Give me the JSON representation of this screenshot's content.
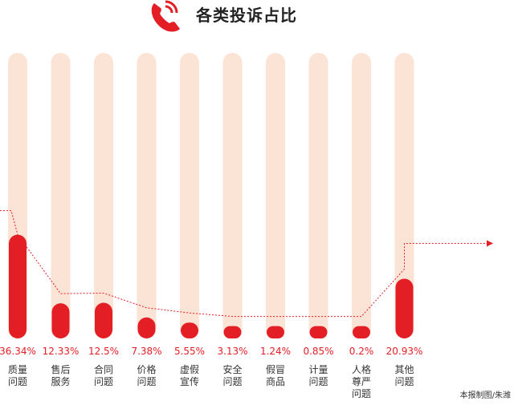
{
  "title": "各类投诉占比",
  "credit": "本报制图/朱潍",
  "colors": {
    "accent": "#e31e24",
    "track": "#fbe3d6",
    "label_text": "#e31e24",
    "category_text": "#333333"
  },
  "chart_data": {
    "type": "bar",
    "title": "各类投诉占比",
    "categories": [
      "质量问题",
      "售后服务",
      "合同问题",
      "价格问题",
      "虚假宣传",
      "安全问题",
      "假冒商品",
      "计量问题",
      "人格尊严问题",
      "其他问题"
    ],
    "category_lines": [
      [
        "质量",
        "问题"
      ],
      [
        "售后",
        "服务"
      ],
      [
        "合同",
        "问题"
      ],
      [
        "价格",
        "问题"
      ],
      [
        "虚假",
        "宣传"
      ],
      [
        "安全",
        "问题"
      ],
      [
        "假冒",
        "商品"
      ],
      [
        "计量",
        "问题"
      ],
      [
        "人格",
        "尊严",
        "问题"
      ],
      [
        "其他",
        "问题"
      ]
    ],
    "values": [
      36.34,
      12.33,
      12.5,
      7.38,
      5.55,
      3.13,
      1.24,
      0.85,
      0.2,
      20.93
    ],
    "value_labels": [
      "36.34%",
      "12.33%",
      "12.5%",
      "7.38%",
      "5.55%",
      "3.13%",
      "1.24%",
      "0.85%",
      "0.2%",
      "20.93%"
    ],
    "ylim": [
      0,
      100
    ],
    "grid": false,
    "legend": "none"
  }
}
